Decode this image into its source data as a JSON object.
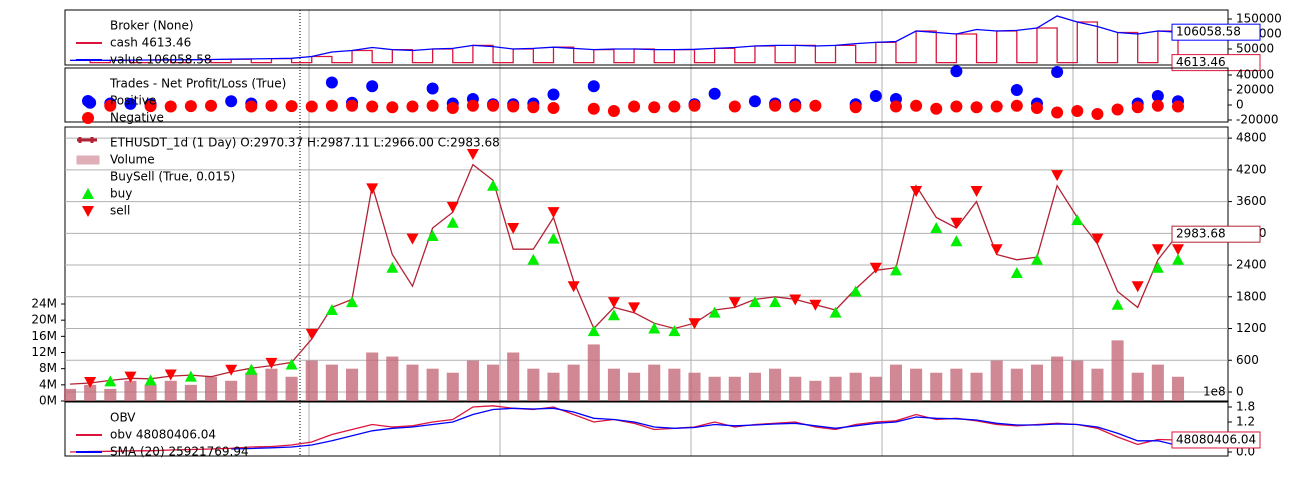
{
  "chart_data": [
    {
      "type": "broker",
      "title": "Broker (None)",
      "ylim": [
        -3333,
        180000
      ],
      "yticks": [
        0,
        50000,
        100000,
        150000
      ],
      "grid": false,
      "series": [
        {
          "name": "cash 4613.46",
          "type": "step",
          "color": "#dc143c",
          "last_label": "4613.46",
          "values": [
            12000,
            4600,
            12500,
            4600,
            13500,
            4600,
            14500,
            4600,
            16000,
            4600,
            18000,
            4600,
            25000,
            4600,
            45000,
            4600,
            48000,
            4600,
            50000,
            4600,
            62000,
            4600,
            50000,
            4600,
            56000,
            4600,
            48000,
            4600,
            50000,
            4600,
            48000,
            4600,
            52000,
            4600,
            60000,
            4600,
            62000,
            4600,
            62000,
            4600,
            72000,
            4600,
            110000,
            4600,
            100000,
            4600,
            110000,
            4600,
            120000,
            4600,
            140000,
            4600,
            105000,
            4600,
            110000,
            4613.46
          ]
        },
        {
          "name": "value 106058.58",
          "type": "line",
          "color": "#0000ff",
          "last_label": "106058.58",
          "values": [
            12000,
            12000,
            12500,
            13000,
            13500,
            14000,
            14500,
            15000,
            16000,
            17000,
            18000,
            19000,
            25000,
            40000,
            45000,
            55000,
            48000,
            45000,
            50000,
            52000,
            62000,
            58000,
            50000,
            52000,
            56000,
            52000,
            48000,
            50000,
            50000,
            48000,
            48000,
            49000,
            52000,
            55000,
            60000,
            62000,
            62000,
            60000,
            62000,
            68000,
            72000,
            75000,
            110000,
            105000,
            100000,
            115000,
            110000,
            112000,
            120000,
            160000,
            140000,
            125000,
            105000,
            100000,
            110000,
            106058.58
          ]
        }
      ]
    },
    {
      "type": "trades",
      "title": "Trades - Net Profit/Loss (True)",
      "ylim": [
        -22667,
        49333
      ],
      "yticks": [
        -20000,
        0,
        20000,
        40000
      ],
      "grid": false,
      "series": [
        {
          "name": "Positive",
          "type": "scatter",
          "marker": "o",
          "color": "#0000ff",
          "values": [
            null,
            3000,
            2000,
            1500,
            1000,
            null,
            null,
            null,
            5000,
            2000,
            null,
            null,
            null,
            30000,
            3000,
            25000,
            null,
            null,
            22000,
            2000,
            8000,
            1000,
            1000,
            2000,
            14000,
            null,
            25000,
            null,
            null,
            null,
            null,
            1000,
            15000,
            null,
            5000,
            2000,
            1000,
            null,
            null,
            1000,
            12000,
            8000,
            null,
            null,
            45000,
            null,
            null,
            20000,
            2000,
            44000,
            null,
            null,
            null,
            2000,
            12000,
            5000
          ]
        },
        {
          "name": "Negative",
          "type": "scatter",
          "marker": "o",
          "color": "#ff0000",
          "values": [
            null,
            null,
            -1000,
            null,
            -1500,
            -2000,
            -1500,
            -1000,
            null,
            -2000,
            -1000,
            -1500,
            -2000,
            -1000,
            -1000,
            -2000,
            -3000,
            -2000,
            -1000,
            -4000,
            -1000,
            -1000,
            -2000,
            -3000,
            -4000,
            null,
            -5000,
            -8000,
            -2000,
            -3000,
            -2000,
            -1000,
            null,
            -2000,
            null,
            -1000,
            -2000,
            -1000,
            null,
            -3000,
            null,
            -2000,
            -1000,
            -5000,
            -2000,
            -3000,
            -2000,
            -1000,
            -4000,
            -10000,
            -8000,
            -12000,
            -6000,
            -3000,
            -1000,
            -2000
          ]
        }
      ]
    },
    {
      "type": "price",
      "title": "ETHUSDT_1d (1 Day) O:2970.37 H:2987.11 L:2966.00 C:2983.68",
      "legend_group": "BuySell (True, 0.015)",
      "ylim": [
        -170,
        5010
      ],
      "yticks": [
        0,
        600,
        1200,
        1800,
        2400,
        3000,
        3600,
        4200,
        4800
      ],
      "grid": true,
      "y2lim": [
        0,
        67.8
      ],
      "y2ticks": [
        {
          "value": 0,
          "label": "0M"
        },
        {
          "value": 4,
          "label": "4M"
        },
        {
          "value": 8,
          "label": "8M"
        },
        {
          "value": 12,
          "label": "12M"
        },
        {
          "value": 16,
          "label": "16M"
        },
        {
          "value": 20,
          "label": "20M"
        },
        {
          "value": 24,
          "label": "24M"
        }
      ],
      "series": [
        {
          "name": "Volume",
          "type": "bar",
          "axis": "y2",
          "color": "#c06070",
          "values": [
            3,
            4,
            3,
            5,
            4,
            5,
            4,
            6,
            5,
            7,
            8,
            6,
            10,
            9,
            8,
            12,
            11,
            9,
            8,
            7,
            10,
            9,
            12,
            8,
            7,
            9,
            14,
            8,
            7,
            9,
            8,
            7,
            6,
            6,
            7,
            8,
            6,
            5,
            6,
            7,
            6,
            9,
            8,
            7,
            8,
            7,
            10,
            8,
            9,
            11,
            10,
            8,
            15,
            7,
            9,
            6
          ]
        },
        {
          "type": "line",
          "color": "#b22234",
          "last_label": "2983.68",
          "values": [
            150,
            170,
            220,
            260,
            250,
            300,
            320,
            290,
            380,
            450,
            500,
            560,
            1000,
            1600,
            1750,
            3900,
            2600,
            2000,
            3100,
            3400,
            4300,
            4000,
            2700,
            2700,
            3300,
            2100,
            1200,
            1600,
            1500,
            1300,
            1200,
            1300,
            1550,
            1600,
            1750,
            1800,
            1750,
            1650,
            1550,
            1950,
            2300,
            2350,
            3900,
            3300,
            3100,
            3600,
            2600,
            2500,
            2550,
            3900,
            3300,
            2800,
            1900,
            1600,
            2500,
            2983.68
          ]
        },
        {
          "name": "buy",
          "type": "scatter",
          "marker": "^",
          "color": "#00ee00",
          "values": [
            null,
            null,
            200,
            null,
            220,
            null,
            290,
            null,
            null,
            420,
            null,
            520,
            null,
            1550,
            1700,
            null,
            2350,
            null,
            2950,
            3200,
            null,
            3900,
            null,
            2500,
            2900,
            null,
            1150,
            1450,
            null,
            1200,
            1150,
            null,
            1500,
            null,
            1700,
            1700,
            null,
            null,
            1500,
            1900,
            null,
            2300,
            null,
            3100,
            2850,
            null,
            null,
            2250,
            2500,
            null,
            3250,
            null,
            1650,
            null,
            2350,
            2500
          ]
        },
        {
          "name": "sell",
          "type": "scatter",
          "marker": "v",
          "color": "#ff0000",
          "values": [
            null,
            190,
            null,
            290,
            null,
            330,
            null,
            null,
            420,
            null,
            550,
            null,
            1100,
            null,
            null,
            3850,
            null,
            2900,
            null,
            3500,
            4500,
            null,
            3100,
            null,
            3400,
            2000,
            null,
            1700,
            1600,
            null,
            null,
            1300,
            null,
            1700,
            null,
            null,
            1750,
            1650,
            null,
            null,
            2350,
            null,
            3800,
            null,
            3200,
            3800,
            2700,
            null,
            null,
            4100,
            null,
            2900,
            null,
            2000,
            2700,
            2700
          ]
        }
      ]
    },
    {
      "type": "obv",
      "title": "OBV",
      "axis_offset": "1e8",
      "ylim": [
        -0.16,
        2.0
      ],
      "yticks": [
        {
          "value": 0,
          "label": "0.0"
        },
        0.6,
        1.2,
        1.8
      ],
      "grid": false,
      "series": [
        {
          "name": "obv 48080406.04",
          "type": "line",
          "color": "#dc143c",
          "last_label": "48080406.04",
          "values": [
            0.0,
            0.02,
            0.03,
            0.05,
            0.05,
            0.08,
            0.1,
            0.12,
            0.15,
            0.2,
            0.22,
            0.28,
            0.4,
            0.7,
            0.9,
            1.1,
            1.0,
            1.05,
            1.2,
            1.3,
            1.8,
            1.85,
            1.75,
            1.7,
            1.8,
            1.5,
            1.2,
            1.3,
            1.15,
            0.9,
            0.95,
            1.0,
            1.2,
            1.0,
            1.1,
            1.15,
            1.2,
            1.0,
            0.9,
            1.1,
            1.2,
            1.25,
            1.5,
            1.3,
            1.35,
            1.25,
            1.1,
            1.05,
            1.1,
            1.15,
            1.1,
            0.95,
            0.6,
            0.3,
            0.5,
            0.4808040604
          ]
        },
        {
          "name": "SMA (20) 25921769.94",
          "type": "line",
          "color": "#0000ff",
          "values": [
            null,
            null,
            null,
            null,
            null,
            null,
            null,
            null,
            0.12,
            0.14,
            0.17,
            0.2,
            0.28,
            0.45,
            0.65,
            0.85,
            0.95,
            1.0,
            1.1,
            1.2,
            1.5,
            1.7,
            1.75,
            1.72,
            1.75,
            1.6,
            1.35,
            1.3,
            1.2,
            1.0,
            0.95,
            0.98,
            1.1,
            1.05,
            1.08,
            1.12,
            1.15,
            1.05,
            0.95,
            1.05,
            1.15,
            1.2,
            1.4,
            1.35,
            1.33,
            1.28,
            1.15,
            1.08,
            1.08,
            1.12,
            1.1,
            1.0,
            0.75,
            0.45,
            0.45,
            0.2592176994
          ]
        }
      ]
    }
  ]
}
